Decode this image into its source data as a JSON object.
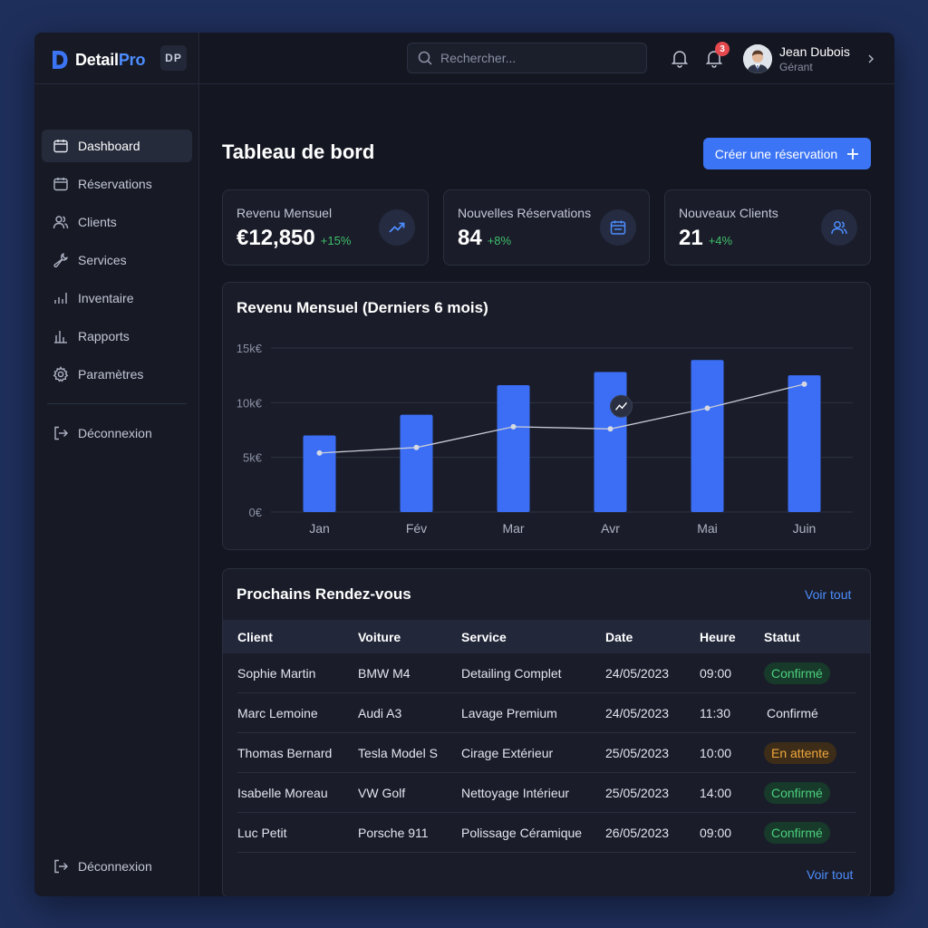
{
  "app": {
    "brand_main": "Detail",
    "brand_accent": "Pro",
    "initials": "DP",
    "accent_color": "#3b74f5"
  },
  "sidebar": {
    "items": [
      {
        "label": "Dashboard",
        "icon": "calendar-icon",
        "active": true
      },
      {
        "label": "Réservations",
        "icon": "calendar-icon",
        "active": false
      },
      {
        "label": "Clients",
        "icon": "users-icon",
        "active": false
      },
      {
        "label": "Services",
        "icon": "wrench-icon",
        "active": false
      },
      {
        "label": "Inventaire",
        "icon": "bar-chart-icon",
        "active": false
      },
      {
        "label": "Rapports",
        "icon": "bar-chart-icon",
        "active": false
      },
      {
        "label": "Paramètres",
        "icon": "gear-icon",
        "active": false
      }
    ],
    "logout_label": "Déconnexion",
    "logout_bottom_label": "Déconnexion"
  },
  "header": {
    "search_placeholder": "Rechercher...",
    "notification_count": "3",
    "user_name": "Jean Dubois",
    "user_role": "Gérant"
  },
  "main": {
    "title": "Tableau de bord",
    "create_button": "Créer une réservation"
  },
  "stats": [
    {
      "label": "Revenu Mensuel",
      "value": "€12,850",
      "delta": "+15%",
      "icon": "trending-up-icon"
    },
    {
      "label": "Nouvelles Réservations",
      "value": "84",
      "delta": "+8%",
      "icon": "calendar-icon"
    },
    {
      "label": "Nouveaux Clients",
      "value": "21",
      "delta": "+4%",
      "icon": "users-icon"
    }
  ],
  "chart_data": {
    "type": "bar",
    "title": "Revenu Mensuel (Derniers 6 mois)",
    "categories": [
      "Jan",
      "Fév",
      "Mar",
      "Avr",
      "Mai",
      "Juin"
    ],
    "y_ticks": [
      "0€",
      "5k€",
      "10k€",
      "15k€"
    ],
    "ylim": [
      0,
      15000
    ],
    "grid": true,
    "series": [
      {
        "type": "bar",
        "values": [
          7000,
          8900,
          11600,
          12800,
          13900,
          12500
        ],
        "color": "#3b6ef5"
      },
      {
        "type": "line",
        "values": [
          5400,
          5900,
          7800,
          7600,
          9500,
          11700
        ],
        "color": "#c9ccd6"
      }
    ]
  },
  "appointments": {
    "title": "Prochains Rendez-vous",
    "view_all": "Voir tout",
    "view_all_bottom": "Voir tout",
    "columns": [
      "Client",
      "Voiture",
      "Service",
      "Date",
      "Heure",
      "Statut"
    ],
    "rows": [
      {
        "client": "Sophie Martin",
        "car": "BMW M4",
        "service": "Detailing Complet",
        "date": "24/05/2023",
        "time": "09:00",
        "status": "Confirmé",
        "status_style": "confirmed"
      },
      {
        "client": "Marc Lemoine",
        "car": "Audi A3",
        "service": "Lavage Premium",
        "date": "24/05/2023",
        "time": "11:30",
        "status": "Confirmé",
        "status_style": "plain"
      },
      {
        "client": "Thomas Bernard",
        "car": "Tesla Model S",
        "service": "Cirage Extérieur",
        "date": "25/05/2023",
        "time": "10:00",
        "status": "En attente",
        "status_style": "pending"
      },
      {
        "client": "Isabelle Moreau",
        "car": "VW Golf",
        "service": "Nettoyage Intérieur",
        "date": "25/05/2023",
        "time": "14:00",
        "status": "Confirmé",
        "status_style": "confirmed"
      },
      {
        "client": "Luc Petit",
        "car": "Porsche 911",
        "service": "Polissage Céramique",
        "date": "26/05/2023",
        "time": "09:00",
        "status": "Confirmé",
        "status_style": "confirmed"
      }
    ]
  }
}
